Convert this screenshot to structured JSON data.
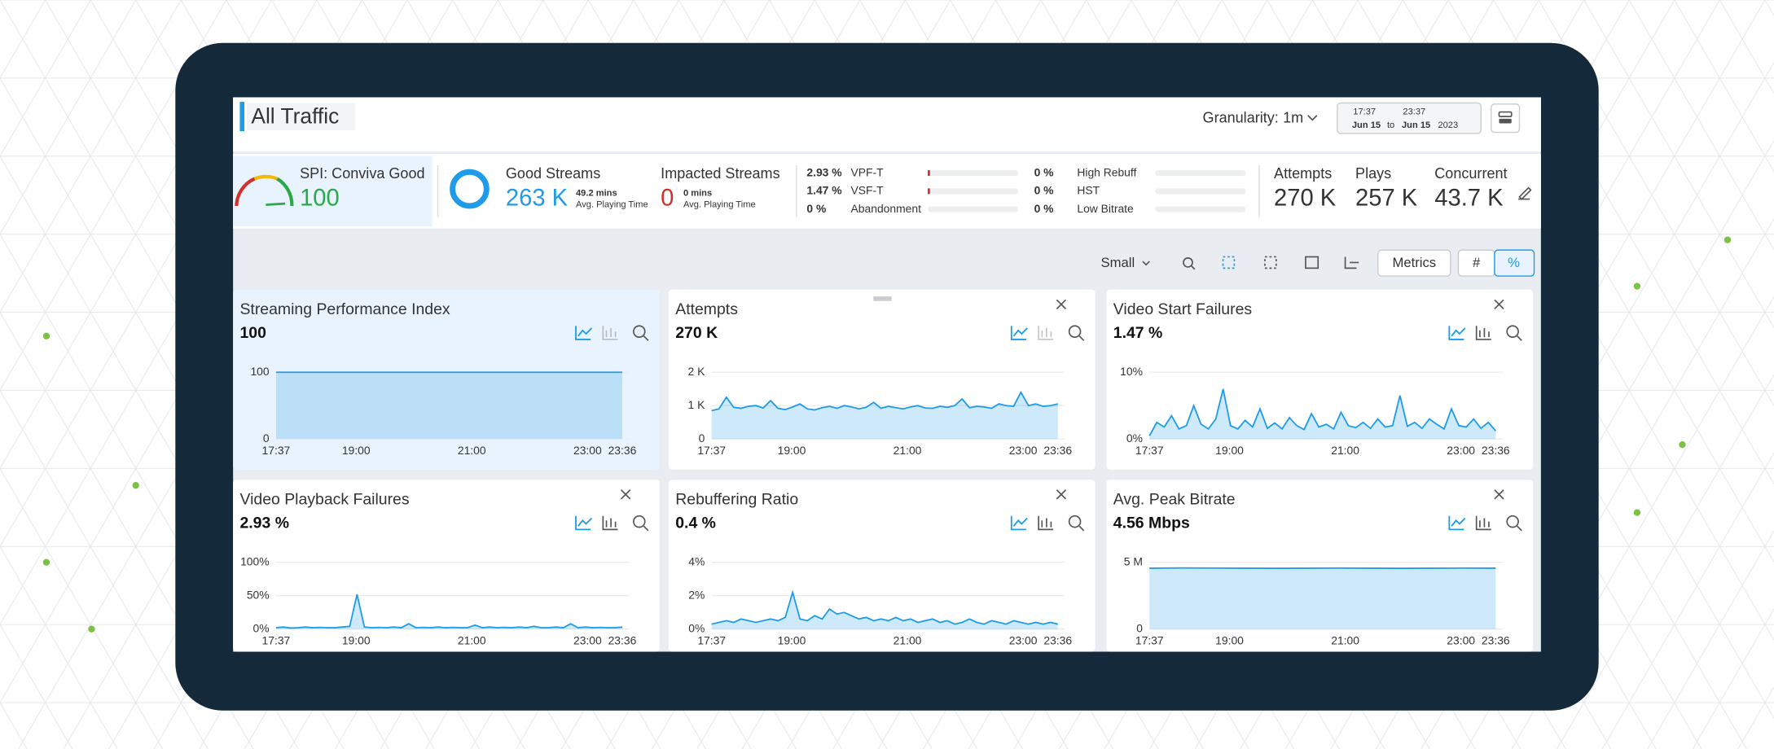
{
  "header": {
    "title": "All Traffic",
    "granularity_label": "Granularity:",
    "granularity": "1m",
    "from_time": "17:37",
    "from_day": "Jun 15",
    "to": "to",
    "to_time": "23:37",
    "to_day": "Jun 15",
    "year": "2023"
  },
  "summary": {
    "spi": {
      "label": "SPI: Conviva Good",
      "value": "100"
    },
    "good": {
      "label": "Good Streams",
      "value": "263 K",
      "time": "49.2 mins",
      "time_label": "Avg. Playing Time"
    },
    "impacted": {
      "label": "Impacted Streams",
      "value": "0",
      "time": "0 mins",
      "time_label": "Avg. Playing Time"
    },
    "failures": [
      {
        "value": "2.93 %",
        "label": "VPF-T"
      },
      {
        "value": "1.47 %",
        "label": "VSF-T"
      },
      {
        "value": "0 %",
        "label": "Abandonment"
      }
    ],
    "quality": [
      {
        "value": "0 %",
        "label": "High Rebuff"
      },
      {
        "value": "0 %",
        "label": "HST"
      },
      {
        "value": "0 %",
        "label": "Low Bitrate"
      }
    ],
    "totals": [
      {
        "label": "Attempts",
        "value": "270 K"
      },
      {
        "label": "Plays",
        "value": "257 K"
      },
      {
        "label": "Concurrent",
        "value": "43.7 K"
      }
    ]
  },
  "toolbar": {
    "size": "Small",
    "metrics": "Metrics",
    "count": "#",
    "percent": "%"
  },
  "time_axis": {
    "xlim": [
      0,
      359
    ],
    "xticks": [
      {
        "value": 0,
        "label": "17:37"
      },
      {
        "value": 83,
        "label": "19:00"
      },
      {
        "value": 203,
        "label": "21:00"
      },
      {
        "value": 323,
        "label": "23:00"
      },
      {
        "value": 359,
        "label": "23:36"
      }
    ]
  },
  "panels": [
    {
      "title": "Streaming Performance Index",
      "value": "100",
      "color": "#1e9be9",
      "ylim": [
        0,
        100
      ],
      "yticks": [
        0,
        100
      ],
      "values": [
        100,
        100,
        100,
        100,
        100,
        100,
        100,
        100,
        100,
        100,
        100,
        100
      ]
    },
    {
      "title": "Attempts",
      "value": "270 K",
      "color": "#1e9be9",
      "ylim": [
        0,
        2000
      ],
      "yticks": [
        0,
        {
          "value": 1000,
          "label": "1 K"
        },
        {
          "value": 2000,
          "label": "2 K"
        }
      ],
      "values": [
        850,
        900,
        1250,
        950,
        920,
        980,
        1000,
        930,
        1150,
        920,
        880,
        960,
        1050,
        900,
        870,
        940,
        980,
        920,
        1000,
        960,
        900,
        950,
        1100,
        920,
        980,
        940,
        900,
        960,
        1000,
        930,
        920,
        980,
        950,
        1000,
        1200,
        940,
        980,
        960,
        920,
        1050,
        1000,
        980,
        1400,
        1000,
        1050,
        980,
        1000,
        1050
      ]
    },
    {
      "title": "Video Start Failures",
      "value": "1.47 %",
      "color": "#1e9be9",
      "ylim": [
        0,
        10
      ],
      "yticks": [
        {
          "value": 0,
          "label": "0%"
        },
        {
          "value": 10,
          "label": "10%"
        }
      ],
      "values": [
        0.5,
        2.5,
        1.8,
        3.5,
        1.5,
        2,
        5,
        2.2,
        1.5,
        3,
        7.5,
        2,
        1.5,
        2.8,
        1.8,
        4.5,
        1.6,
        2.4,
        1.5,
        3.2,
        2,
        1.4,
        3.8,
        1.8,
        2.2,
        1.5,
        4,
        2,
        1.7,
        2.5,
        1.6,
        3,
        1.8,
        2,
        6.5,
        1.9,
        2.5,
        1.6,
        3,
        2.2,
        1.5,
        4.5,
        2,
        1.8,
        3,
        1.6,
        2.5,
        1.2
      ]
    },
    {
      "title": "Video Playback Failures",
      "value": "2.93 %",
      "color": "#1e9be9",
      "ylim": [
        0,
        100
      ],
      "yticks": [
        {
          "value": 0,
          "label": "0%"
        },
        {
          "value": 50,
          "label": "50%"
        },
        {
          "value": 100,
          "label": "100%"
        }
      ],
      "values": [
        2,
        3,
        1.5,
        2,
        3,
        2,
        2.5,
        2,
        2,
        3,
        4,
        52,
        3,
        2,
        2.5,
        2,
        3,
        2,
        8,
        2,
        2.5,
        2,
        3,
        2,
        2.5,
        2,
        2,
        6,
        2,
        3,
        2,
        2.5,
        2,
        3,
        2,
        4,
        2,
        2,
        3,
        2,
        8,
        2,
        3,
        2,
        2.5,
        2,
        2,
        3
      ]
    },
    {
      "title": "Rebuffering Ratio",
      "value": "0.4 %",
      "color": "#1e9be9",
      "ylim": [
        0,
        4
      ],
      "yticks": [
        {
          "value": 0,
          "label": "0%"
        },
        {
          "value": 2,
          "label": "2%"
        },
        {
          "value": 4,
          "label": "4%"
        }
      ],
      "values": [
        0.3,
        0.4,
        0.5,
        0.4,
        0.6,
        0.5,
        0.4,
        0.5,
        0.6,
        0.5,
        0.7,
        2.2,
        0.6,
        0.5,
        0.8,
        0.6,
        1.2,
        0.9,
        1,
        0.8,
        0.6,
        0.7,
        0.5,
        0.6,
        0.5,
        0.7,
        0.5,
        0.6,
        0.4,
        0.5,
        0.6,
        0.4,
        0.5,
        0.3,
        0.4,
        0.6,
        0.4,
        0.3,
        0.5,
        0.4,
        0.3,
        0.5,
        0.4,
        0.3,
        0.4,
        0.3,
        0.4,
        0.3
      ]
    },
    {
      "title": "Avg. Peak Bitrate",
      "value": "4.56 Mbps",
      "color": "#1e9be9",
      "ylim": [
        0,
        5000000
      ],
      "yticks": [
        0,
        {
          "value": 5000000,
          "label": "5 M"
        }
      ],
      "values": [
        4560000,
        4580000,
        4570000,
        4560000,
        4550000,
        4560000,
        4570000,
        4560000,
        4550000,
        4560000,
        4570000,
        4560000
      ]
    }
  ]
}
